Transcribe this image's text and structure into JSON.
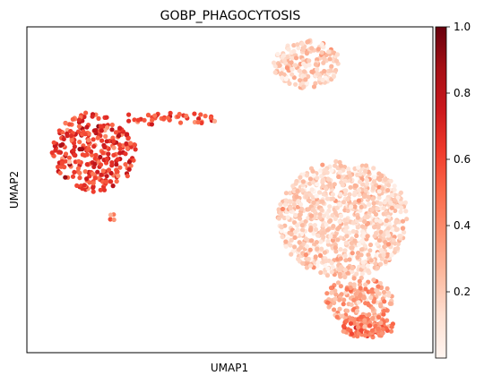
{
  "chart_data": {
    "type": "scatter",
    "title": "GOBP_PHAGOCYTOSIS",
    "xlabel": "UMAP1",
    "ylabel": "UMAP2",
    "xticks": [],
    "yticks": [],
    "colorbar": {
      "colormap": "Reds",
      "range": [
        0.0,
        1.0
      ],
      "ticks": [
        0.2,
        0.4,
        0.6,
        0.8,
        1.0
      ],
      "tick_labels": [
        "0.2",
        "0.4",
        "0.6",
        "0.8",
        "1.0"
      ]
    },
    "colors": {
      "low": "#fff5f0",
      "mid": "#fb6a4a",
      "high": "#67000d"
    },
    "clusters": [
      {
        "cx": 105,
        "cy": 170,
        "rx": 47,
        "ry": 45,
        "n": 300,
        "vmean": 0.62,
        "vsd": 0.12
      },
      {
        "cx": 185,
        "cy": 133,
        "rx": 60,
        "ry": 7,
        "n": 45,
        "vmean": 0.55,
        "vsd": 0.1
      },
      {
        "cx": 125,
        "cy": 243,
        "rx": 4,
        "ry": 4,
        "n": 4,
        "vmean": 0.45,
        "vsd": 0.15
      },
      {
        "cx": 343,
        "cy": 72,
        "rx": 38,
        "ry": 27,
        "n": 190,
        "vmean": 0.18,
        "vsd": 0.08
      },
      {
        "cx": 383,
        "cy": 245,
        "rx": 73,
        "ry": 65,
        "n": 900,
        "vmean": 0.17,
        "vsd": 0.08
      },
      {
        "cx": 400,
        "cy": 335,
        "rx": 38,
        "ry": 25,
        "n": 160,
        "vmean": 0.3,
        "vsd": 0.1
      },
      {
        "cx": 410,
        "cy": 365,
        "rx": 30,
        "ry": 12,
        "n": 120,
        "vmean": 0.45,
        "vsd": 0.12
      }
    ]
  }
}
